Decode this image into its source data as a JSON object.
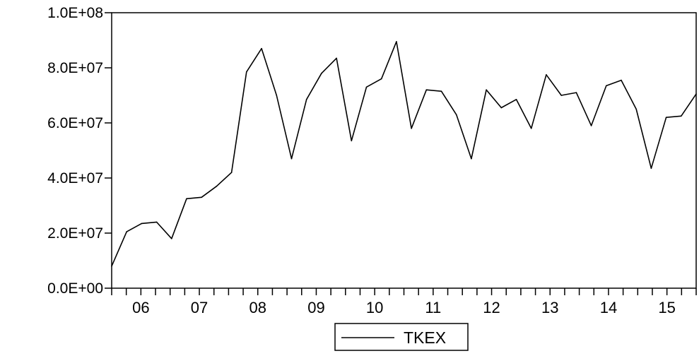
{
  "chart_data": {
    "type": "line",
    "title": "",
    "xlabel": "",
    "ylabel": "",
    "ylim": [
      0,
      100000000
    ],
    "y_ticks": [
      "0.0E+00",
      "2.0E+07",
      "4.0E+07",
      "6.0E+07",
      "8.0E+07",
      "1.0E+08"
    ],
    "x_categories": [
      "06",
      "07",
      "08",
      "09",
      "10",
      "11",
      "12",
      "13",
      "14",
      "15"
    ],
    "x_range": [
      "2006Q1",
      "2015Q4"
    ],
    "legend_position": "bottom-center",
    "grid": false,
    "series": [
      {
        "name": "TKEX",
        "color": "#000000",
        "x": [
          "2006Q1",
          "2006Q2",
          "2006Q3",
          "2006Q4",
          "2007Q1",
          "2007Q2",
          "2007Q3",
          "2007Q4",
          "2008Q1",
          "2008Q2",
          "2008Q3",
          "2008Q4",
          "2009Q1",
          "2009Q2",
          "2009Q3",
          "2009Q4",
          "2010Q1",
          "2010Q2",
          "2010Q3",
          "2010Q4",
          "2011Q1",
          "2011Q2",
          "2011Q3",
          "2011Q4",
          "2012Q1",
          "2012Q2",
          "2012Q3",
          "2012Q4",
          "2013Q1",
          "2013Q2",
          "2013Q3",
          "2013Q4",
          "2014Q1",
          "2014Q2",
          "2014Q3",
          "2014Q4",
          "2015Q1",
          "2015Q2",
          "2015Q3",
          "2015Q4"
        ],
        "values": [
          8000000,
          20500000,
          23500000,
          24000000,
          18000000,
          32500000,
          33000000,
          37000000,
          42000000,
          78500000,
          87000000,
          70000000,
          47000000,
          68500000,
          78000000,
          83500000,
          53500000,
          73000000,
          76000000,
          89500000,
          58000000,
          72000000,
          71500000,
          63000000,
          47000000,
          72000000,
          65500000,
          68500000,
          58000000,
          77500000,
          70000000,
          71000000,
          59000000,
          73500000,
          75500000,
          65000000,
          43500000,
          62000000,
          62500000,
          70500000
        ]
      }
    ]
  }
}
